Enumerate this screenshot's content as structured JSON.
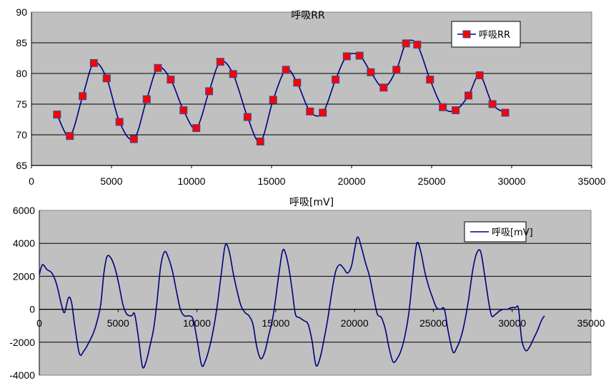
{
  "chart_data": [
    {
      "type": "line",
      "title": "呼吸RR",
      "xlim": [
        0,
        35000
      ],
      "ylim": [
        65,
        90
      ],
      "x_ticks": [
        0,
        5000,
        10000,
        15000,
        20000,
        25000,
        30000,
        35000
      ],
      "y_ticks": [
        65,
        70,
        75,
        80,
        85,
        90
      ],
      "grid": true,
      "legend": "top-right",
      "colors": {
        "plot_bg": "#c0c0c0",
        "line": "#000080",
        "marker": "#ff0000"
      },
      "series": [
        {
          "name": "呼吸RR",
          "marker": "square",
          "points": [
            [
              1600,
              73.3
            ],
            [
              2400,
              69.8
            ],
            [
              3200,
              76.3
            ],
            [
              3900,
              81.7
            ],
            [
              4700,
              79.2
            ],
            [
              5500,
              72.1
            ],
            [
              6400,
              69.3
            ],
            [
              7200,
              75.8
            ],
            [
              7900,
              80.9
            ],
            [
              8700,
              79.0
            ],
            [
              9500,
              74.0
            ],
            [
              10300,
              71.1
            ],
            [
              11100,
              77.1
            ],
            [
              11800,
              81.9
            ],
            [
              12600,
              79.9
            ],
            [
              13500,
              72.9
            ],
            [
              14300,
              68.9
            ],
            [
              15100,
              75.7
            ],
            [
              15900,
              80.6
            ],
            [
              16600,
              78.5
            ],
            [
              17400,
              73.8
            ],
            [
              18200,
              73.6
            ],
            [
              19000,
              79.0
            ],
            [
              19700,
              82.8
            ],
            [
              20500,
              82.9
            ],
            [
              21200,
              80.2
            ],
            [
              22000,
              77.7
            ],
            [
              22800,
              80.6
            ],
            [
              23400,
              84.9
            ],
            [
              24100,
              84.7
            ],
            [
              24900,
              79.0
            ],
            [
              25700,
              74.5
            ],
            [
              26500,
              74.0
            ],
            [
              27300,
              76.4
            ],
            [
              28000,
              79.7
            ],
            [
              28800,
              75.0
            ],
            [
              29600,
              73.6
            ]
          ]
        }
      ]
    },
    {
      "type": "line",
      "title": "呼吸[mV]",
      "xlim": [
        0,
        35000
      ],
      "ylim": [
        -4000,
        6000
      ],
      "x_ticks": [
        0,
        5000,
        10000,
        15000,
        20000,
        25000,
        30000,
        35000
      ],
      "y_ticks": [
        -4000,
        -2000,
        0,
        2000,
        4000,
        6000
      ],
      "grid": true,
      "legend": "top-right",
      "colors": {
        "plot_bg": "#c0c0c0",
        "line": "#000080"
      },
      "series": [
        {
          "name": "呼吸[mV]",
          "points": [
            [
              0,
              2100
            ],
            [
              200,
              2700
            ],
            [
              500,
              2400
            ],
            [
              800,
              2200
            ],
            [
              1100,
              1500
            ],
            [
              1400,
              300
            ],
            [
              1600,
              -200
            ],
            [
              1850,
              700
            ],
            [
              2050,
              400
            ],
            [
              2250,
              -1000
            ],
            [
              2550,
              -2700
            ],
            [
              2850,
              -2500
            ],
            [
              3150,
              -2000
            ],
            [
              3450,
              -1400
            ],
            [
              3700,
              -600
            ],
            [
              3900,
              300
            ],
            [
              4100,
              2200
            ],
            [
              4300,
              3200
            ],
            [
              4550,
              3100
            ],
            [
              4800,
              2500
            ],
            [
              5050,
              1500
            ],
            [
              5300,
              300
            ],
            [
              5550,
              -300
            ],
            [
              5850,
              -400
            ],
            [
              6050,
              -300
            ],
            [
              6300,
              -1800
            ],
            [
              6550,
              -3500
            ],
            [
              6800,
              -3100
            ],
            [
              7050,
              -2100
            ],
            [
              7250,
              -1200
            ],
            [
              7450,
              300
            ],
            [
              7700,
              2600
            ],
            [
              7950,
              3500
            ],
            [
              8200,
              3100
            ],
            [
              8450,
              2300
            ],
            [
              8700,
              1100
            ],
            [
              8950,
              0
            ],
            [
              9200,
              -400
            ],
            [
              9500,
              -400
            ],
            [
              9750,
              -600
            ],
            [
              10000,
              -1800
            ],
            [
              10300,
              -3400
            ],
            [
              10550,
              -3100
            ],
            [
              10800,
              -2300
            ],
            [
              11050,
              -1200
            ],
            [
              11300,
              300
            ],
            [
              11550,
              2200
            ],
            [
              11800,
              3900
            ],
            [
              12050,
              3500
            ],
            [
              12300,
              2200
            ],
            [
              12550,
              1100
            ],
            [
              12800,
              200
            ],
            [
              13050,
              -200
            ],
            [
              13300,
              -400
            ],
            [
              13550,
              -900
            ],
            [
              13800,
              -2300
            ],
            [
              14050,
              -3000
            ],
            [
              14300,
              -2600
            ],
            [
              14550,
              -1600
            ],
            [
              14800,
              -600
            ],
            [
              15000,
              700
            ],
            [
              15250,
              2500
            ],
            [
              15450,
              3600
            ],
            [
              15650,
              3300
            ],
            [
              15850,
              2400
            ],
            [
              16050,
              1100
            ],
            [
              16250,
              -300
            ],
            [
              16500,
              -500
            ],
            [
              16800,
              -700
            ],
            [
              17050,
              -900
            ],
            [
              17300,
              -1900
            ],
            [
              17550,
              -3400
            ],
            [
              17800,
              -3000
            ],
            [
              18050,
              -1900
            ],
            [
              18300,
              -600
            ],
            [
              18550,
              1000
            ],
            [
              18800,
              2300
            ],
            [
              19050,
              2700
            ],
            [
              19300,
              2500
            ],
            [
              19550,
              2200
            ],
            [
              19800,
              2600
            ],
            [
              20000,
              3600
            ],
            [
              20200,
              4400
            ],
            [
              20450,
              3700
            ],
            [
              20700,
              2800
            ],
            [
              20950,
              2000
            ],
            [
              21200,
              800
            ],
            [
              21450,
              -300
            ],
            [
              21700,
              -500
            ],
            [
              21950,
              -1200
            ],
            [
              22200,
              -2400
            ],
            [
              22450,
              -3200
            ],
            [
              22700,
              -3000
            ],
            [
              22950,
              -2500
            ],
            [
              23200,
              -1600
            ],
            [
              23450,
              -200
            ],
            [
              23700,
              2100
            ],
            [
              23950,
              4000
            ],
            [
              24200,
              3500
            ],
            [
              24450,
              2300
            ],
            [
              24700,
              1400
            ],
            [
              24950,
              700
            ],
            [
              25200,
              100
            ],
            [
              25450,
              0
            ],
            [
              25700,
              0
            ],
            [
              25950,
              -1400
            ],
            [
              26250,
              -2600
            ],
            [
              26500,
              -2300
            ],
            [
              26750,
              -1700
            ],
            [
              27000,
              -700
            ],
            [
              27250,
              700
            ],
            [
              27500,
              2400
            ],
            [
              27750,
              3400
            ],
            [
              28000,
              3500
            ],
            [
              28250,
              2100
            ],
            [
              28500,
              500
            ],
            [
              28700,
              -400
            ],
            [
              28950,
              -300
            ],
            [
              29200,
              -100
            ],
            [
              29450,
              0
            ],
            [
              29700,
              0
            ],
            [
              29950,
              100
            ],
            [
              30200,
              100
            ],
            [
              30400,
              50
            ],
            [
              30600,
              -1800
            ],
            [
              30850,
              -2500
            ],
            [
              31100,
              -2300
            ],
            [
              31350,
              -1800
            ],
            [
              31600,
              -1300
            ],
            [
              31850,
              -700
            ],
            [
              32050,
              -400
            ]
          ]
        }
      ]
    }
  ]
}
